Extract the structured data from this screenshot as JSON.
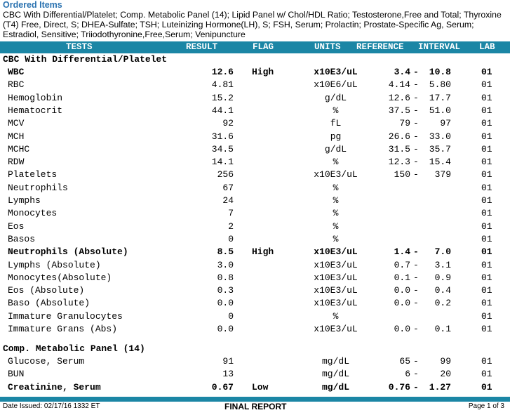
{
  "ordered": {
    "title": "Ordered Items",
    "text": "CBC With Differential/Platelet; Comp. Metabolic Panel (14); Lipid Panel w/ Chol/HDL Ratio; Testosterone,Free and Total; Thyroxine (T4) Free, Direct, S; DHEA-Sulfate; TSH; Luteinizing Hormone(LH), S; FSH, Serum; Prolactin; Prostate-Specific Ag, Serum; Estradiol, Sensitive; Triiodothyronine,Free,Serum; Venipuncture"
  },
  "header": {
    "tests": "TESTS",
    "result": "RESULT",
    "flag": "FLAG",
    "units": "UNITS",
    "reference": "REFERENCE",
    "interval": "INTERVAL",
    "lab": "LAB"
  },
  "sections": [
    {
      "title": "CBC With Differential/Platelet",
      "rows": [
        {
          "test": "WBC",
          "result": "12.6",
          "flag": "High",
          "units": "x10E3/uL",
          "low": "3.4",
          "dash": "-",
          "high": "10.8",
          "lab": "01",
          "bold": true
        },
        {
          "test": "RBC",
          "result": "4.81",
          "flag": "",
          "units": "x10E6/uL",
          "low": "4.14",
          "dash": "-",
          "high": "5.80",
          "lab": "01",
          "bold": false
        },
        {
          "test": "Hemoglobin",
          "result": "15.2",
          "flag": "",
          "units": "g/dL",
          "low": "12.6",
          "dash": "-",
          "high": "17.7",
          "lab": "01",
          "bold": false
        },
        {
          "test": "Hematocrit",
          "result": "44.1",
          "flag": "",
          "units": "%",
          "low": "37.5",
          "dash": "-",
          "high": "51.0",
          "lab": "01",
          "bold": false
        },
        {
          "test": "MCV",
          "result": "92",
          "flag": "",
          "units": "fL",
          "low": "79",
          "dash": "-",
          "high": "97",
          "lab": "01",
          "bold": false
        },
        {
          "test": "MCH",
          "result": "31.6",
          "flag": "",
          "units": "pg",
          "low": "26.6",
          "dash": "-",
          "high": "33.0",
          "lab": "01",
          "bold": false
        },
        {
          "test": "MCHC",
          "result": "34.5",
          "flag": "",
          "units": "g/dL",
          "low": "31.5",
          "dash": "-",
          "high": "35.7",
          "lab": "01",
          "bold": false
        },
        {
          "test": "RDW",
          "result": "14.1",
          "flag": "",
          "units": "%",
          "low": "12.3",
          "dash": "-",
          "high": "15.4",
          "lab": "01",
          "bold": false
        },
        {
          "test": "Platelets",
          "result": "256",
          "flag": "",
          "units": "x10E3/uL",
          "low": "150",
          "dash": "-",
          "high": "379",
          "lab": "01",
          "bold": false
        },
        {
          "test": "Neutrophils",
          "result": "67",
          "flag": "",
          "units": "%",
          "low": "",
          "dash": "",
          "high": "",
          "lab": "01",
          "bold": false
        },
        {
          "test": "Lymphs",
          "result": "24",
          "flag": "",
          "units": "%",
          "low": "",
          "dash": "",
          "high": "",
          "lab": "01",
          "bold": false
        },
        {
          "test": "Monocytes",
          "result": "7",
          "flag": "",
          "units": "%",
          "low": "",
          "dash": "",
          "high": "",
          "lab": "01",
          "bold": false
        },
        {
          "test": "Eos",
          "result": "2",
          "flag": "",
          "units": "%",
          "low": "",
          "dash": "",
          "high": "",
          "lab": "01",
          "bold": false
        },
        {
          "test": "Basos",
          "result": "0",
          "flag": "",
          "units": "%",
          "low": "",
          "dash": "",
          "high": "",
          "lab": "01",
          "bold": false
        },
        {
          "test": "Neutrophils (Absolute)",
          "result": "8.5",
          "flag": "High",
          "units": "x10E3/uL",
          "low": "1.4",
          "dash": "-",
          "high": "7.0",
          "lab": "01",
          "bold": true
        },
        {
          "test": "Lymphs (Absolute)",
          "result": "3.0",
          "flag": "",
          "units": "x10E3/uL",
          "low": "0.7",
          "dash": "-",
          "high": "3.1",
          "lab": "01",
          "bold": false
        },
        {
          "test": "Monocytes(Absolute)",
          "result": "0.8",
          "flag": "",
          "units": "x10E3/uL",
          "low": "0.1",
          "dash": "-",
          "high": "0.9",
          "lab": "01",
          "bold": false
        },
        {
          "test": "Eos (Absolute)",
          "result": "0.3",
          "flag": "",
          "units": "x10E3/uL",
          "low": "0.0",
          "dash": "-",
          "high": "0.4",
          "lab": "01",
          "bold": false
        },
        {
          "test": "Baso (Absolute)",
          "result": "0.0",
          "flag": "",
          "units": "x10E3/uL",
          "low": "0.0",
          "dash": "-",
          "high": "0.2",
          "lab": "01",
          "bold": false
        },
        {
          "test": "Immature Granulocytes",
          "result": "0",
          "flag": "",
          "units": "%",
          "low": "",
          "dash": "",
          "high": "",
          "lab": "01",
          "bold": false
        },
        {
          "test": "Immature Grans (Abs)",
          "result": "0.0",
          "flag": "",
          "units": "x10E3/uL",
          "low": "0.0",
          "dash": "-",
          "high": "0.1",
          "lab": "01",
          "bold": false
        }
      ]
    },
    {
      "title": "Comp. Metabolic Panel (14)",
      "rows": [
        {
          "test": "Glucose, Serum",
          "result": "91",
          "flag": "",
          "units": "mg/dL",
          "low": "65",
          "dash": "-",
          "high": "99",
          "lab": "01",
          "bold": false
        },
        {
          "test": "BUN",
          "result": "13",
          "flag": "",
          "units": "mg/dL",
          "low": "6",
          "dash": "-",
          "high": "20",
          "lab": "01",
          "bold": false
        },
        {
          "test": "Creatinine, Serum",
          "result": "0.67",
          "flag": "Low",
          "units": "mg/dL",
          "low": "0.76",
          "dash": "-",
          "high": "1.27",
          "lab": "01",
          "bold": true
        }
      ]
    }
  ],
  "footer": {
    "date_issued": "Date Issued: 02/17/16 1332 ET",
    "final": "FINAL REPORT",
    "page": "Page 1 of 3"
  }
}
